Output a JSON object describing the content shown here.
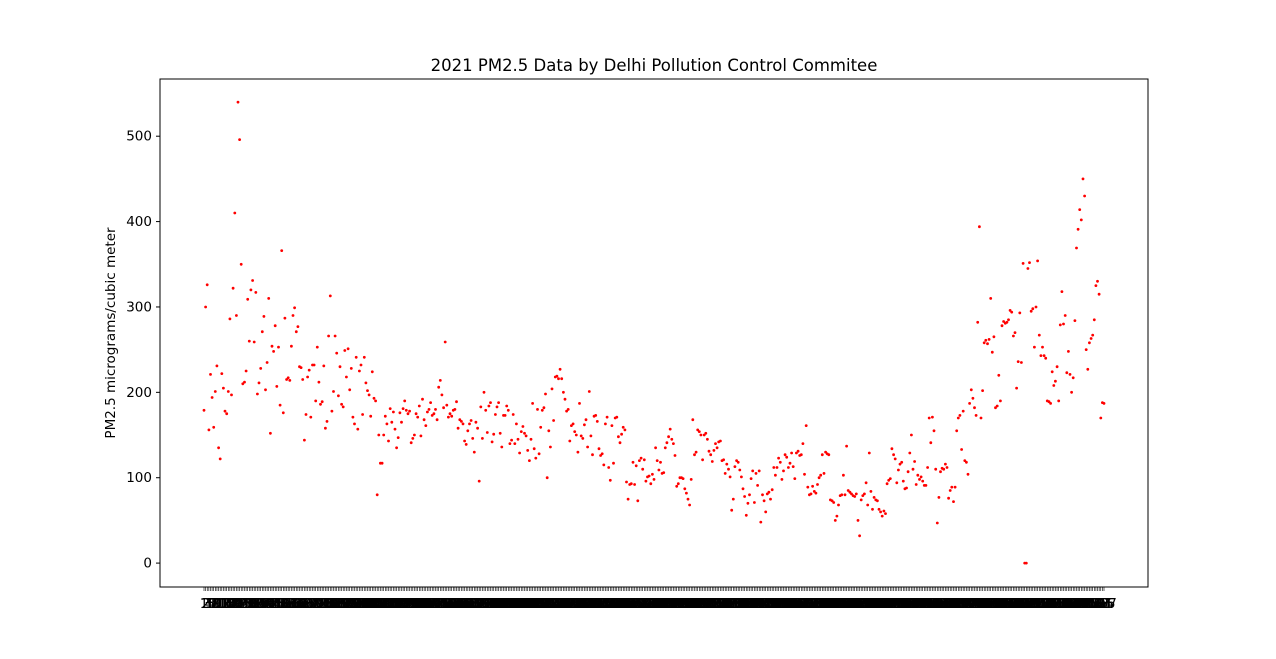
{
  "chart_data": {
    "type": "scatter",
    "title": "2021 PM2.5 Data by Delhi Pollution Control Commitee",
    "xlabel": "",
    "ylabel": "PM2.5 micrograms/cubic meter",
    "ylim": [
      -28,
      567
    ],
    "yticks": [
      0,
      100,
      200,
      300,
      400,
      500
    ],
    "xtick_labels": "overlapping integer day labels (unreadable)",
    "marker_color": "#ff0000",
    "grid": false,
    "legend": "none",
    "values": [
      179,
      300,
      326,
      156,
      221,
      194,
      159,
      201,
      231,
      135,
      122,
      222,
      205,
      178,
      175,
      201,
      286,
      197,
      322,
      410,
      290,
      540,
      496,
      350,
      210,
      212,
      225,
      309,
      260,
      320,
      331,
      259,
      317,
      198,
      211,
      228,
      271,
      289,
      203,
      235,
      310,
      152,
      254,
      248,
      278,
      207,
      253,
      185,
      366,
      176,
      287,
      215,
      217,
      214,
      254,
      290,
      299,
      271,
      277,
      230,
      229,
      215,
      144,
      174,
      218,
      226,
      171,
      232,
      232,
      190,
      253,
      212,
      186,
      189,
      231,
      158,
      166,
      266,
      313,
      178,
      201,
      266,
      246,
      196,
      230,
      186,
      183,
      249,
      218,
      251,
      203,
      228,
      171,
      163,
      241,
      157,
      225,
      232,
      174,
      241,
      211,
      202,
      197,
      172,
      224,
      193,
      190,
      80,
      150,
      117,
      117,
      150,
      172,
      163,
      143,
      181,
      165,
      177,
      157,
      135,
      147,
      176,
      165,
      181,
      190,
      179,
      175,
      178,
      141,
      146,
      150,
      175,
      171,
      184,
      149,
      192,
      168,
      161,
      177,
      180,
      188,
      173,
      175,
      180,
      168,
      206,
      214,
      197,
      182,
      259,
      185,
      171,
      175,
      172,
      179,
      180,
      189,
      158,
      168,
      166,
      163,
      143,
      139,
      155,
      163,
      167,
      146,
      130,
      165,
      158,
      96,
      183,
      146,
      200,
      179,
      153,
      184,
      188,
      142,
      151,
      174,
      183,
      188,
      152,
      136,
      173,
      173,
      184,
      179,
      140,
      144,
      174,
      140,
      163,
      145,
      129,
      154,
      160,
      152,
      149,
      132,
      120,
      145,
      187,
      134,
      123,
      180,
      128,
      159,
      179,
      182,
      198,
      100,
      155,
      136,
      204,
      167,
      218,
      219,
      216,
      227,
      216,
      200,
      192,
      178,
      180,
      143,
      161,
      163,
      154,
      150,
      130,
      187,
      149,
      146,
      162,
      168,
      136,
      201,
      149,
      127,
      172,
      173,
      166,
      134,
      126,
      128,
      115,
      163,
      171,
      112,
      97,
      161,
      117,
      170,
      171,
      148,
      141,
      151,
      159,
      156,
      95,
      75,
      92,
      93,
      118,
      92,
      114,
      73,
      120,
      123,
      110,
      121,
      96,
      101,
      102,
      93,
      104,
      98,
      135,
      120,
      109,
      118,
      105,
      106,
      135,
      141,
      148,
      157,
      145,
      140,
      126,
      90,
      93,
      100,
      100,
      99,
      87,
      82,
      75,
      68,
      98,
      168,
      127,
      130,
      156,
      154,
      150,
      121,
      150,
      152,
      145,
      131,
      127,
      119,
      132,
      140,
      135,
      142,
      143,
      120,
      121,
      105,
      116,
      110,
      101,
      62,
      75,
      113,
      120,
      118,
      109,
      101,
      87,
      78,
      56,
      70,
      80,
      99,
      108,
      71,
      105,
      91,
      108,
      48,
      80,
      73,
      60,
      81,
      83,
      75,
      86,
      112,
      103,
      112,
      123,
      118,
      98,
      108,
      127,
      124,
      112,
      117,
      129,
      113,
      99,
      129,
      131,
      126,
      127,
      140,
      104,
      161,
      89,
      80,
      81,
      90,
      84,
      82,
      92,
      100,
      103,
      127,
      105,
      130,
      128,
      127,
      74,
      73,
      71,
      50,
      55,
      68,
      79,
      80,
      103,
      80,
      137,
      85,
      83,
      81,
      79,
      78,
      81,
      50,
      32,
      74,
      79,
      81,
      94,
      68,
      129,
      84,
      63,
      77,
      74,
      73,
      63,
      60,
      55,
      61,
      58,
      93,
      97,
      99,
      134,
      127,
      122,
      94,
      109,
      116,
      118,
      96,
      87,
      88,
      107,
      129,
      150,
      110,
      119,
      92,
      103,
      98,
      101,
      96,
      91,
      91,
      112,
      170,
      141,
      171,
      155,
      110,
      47,
      77,
      107,
      111,
      110,
      116,
      112,
      76,
      85,
      89,
      72,
      89,
      155,
      170,
      173,
      133,
      178,
      120,
      118,
      104,
      187,
      203,
      193,
      182,
      173,
      282,
      394,
      170,
      202,
      258,
      261,
      257,
      262,
      310,
      247,
      265,
      182,
      184,
      220,
      190,
      278,
      283,
      281,
      282,
      285,
      296,
      294,
      266,
      270,
      205,
      236,
      293,
      235,
      351,
      0,
      0,
      345,
      352,
      295,
      298,
      253,
      300,
      354,
      267,
      243,
      253,
      243,
      240,
      190,
      189,
      187,
      224,
      208,
      213,
      230,
      190,
      279,
      318,
      280,
      290,
      223,
      248,
      221,
      200,
      217,
      284,
      369,
      391,
      414,
      402,
      450,
      430,
      250,
      227,
      258,
      263,
      267,
      285,
      325,
      330,
      315,
      170,
      188,
      187
    ]
  }
}
